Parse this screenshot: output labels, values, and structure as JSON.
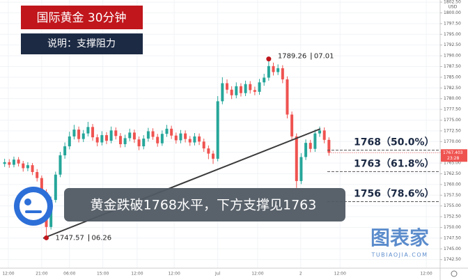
{
  "chart_data": {
    "type": "candlestick",
    "title": "国际黄金 30分钟",
    "subtitle": "说明：支撑阻力",
    "currency": "USD",
    "headline": "黄金跌破1768水平，下方支撑见1763",
    "watermark": {
      "name": "图表家",
      "site": "TUBIAOJIA.COM"
    },
    "colors": {
      "up": "#26a69a",
      "down": "#ef5350"
    },
    "x": [
      0,
      1,
      2,
      3,
      4,
      5,
      6,
      7,
      8,
      9,
      10,
      11,
      12,
      13,
      14,
      15,
      16,
      17,
      18,
      19,
      20,
      21,
      22,
      23,
      24,
      25,
      26,
      27,
      28,
      29,
      30,
      31,
      32,
      33,
      34,
      35,
      36,
      37,
      38,
      39,
      40,
      41,
      42,
      43,
      44,
      45,
      46,
      47,
      48,
      49,
      50,
      51,
      52,
      53,
      54,
      55,
      56,
      57,
      58,
      59,
      60,
      61,
      62,
      63,
      64,
      65,
      66,
      67,
      68,
      69,
      70
    ],
    "open": [
      1764.8,
      1765.2,
      1764.6,
      1765.8,
      1764.9,
      1763.8,
      1764.5,
      1762.9,
      1761.5,
      1758.2,
      1750.1,
      1756.4,
      1762.3,
      1766.8,
      1768.9,
      1771.2,
      1772.8,
      1770.6,
      1771.9,
      1773.4,
      1771.0,
      1769.8,
      1771.5,
      1770.2,
      1772.6,
      1771.3,
      1769.4,
      1770.8,
      1772.1,
      1770.5,
      1768.9,
      1770.7,
      1772.4,
      1771.1,
      1769.6,
      1771.8,
      1773.0,
      1771.4,
      1770.3,
      1771.9,
      1770.6,
      1769.8,
      1771.2,
      1770.0,
      1768.4,
      1767.2,
      1766.0,
      1779.4,
      1783.6,
      1782.1,
      1780.8,
      1782.9,
      1781.3,
      1783.4,
      1782.0,
      1781.6,
      1783.8,
      1784.9,
      1787.6,
      1786.2,
      1787.1,
      1784.5,
      1776.3,
      1771.2,
      1760.8,
      1766.4,
      1769.7,
      1768.3,
      1771.9,
      1772.6,
      1770.4
    ],
    "high": [
      1766.0,
      1765.9,
      1766.5,
      1766.4,
      1765.5,
      1765.2,
      1765.0,
      1763.6,
      1762.1,
      1758.9,
      1757.2,
      1763.0,
      1767.6,
      1769.8,
      1772.3,
      1773.9,
      1773.5,
      1772.7,
      1774.6,
      1774.1,
      1771.7,
      1772.4,
      1772.2,
      1773.5,
      1773.3,
      1772.0,
      1771.6,
      1773.0,
      1772.8,
      1771.2,
      1771.5,
      1773.2,
      1773.1,
      1771.8,
      1772.6,
      1773.9,
      1773.7,
      1772.1,
      1772.7,
      1772.6,
      1771.3,
      1772.0,
      1771.9,
      1770.7,
      1769.1,
      1767.9,
      1780.6,
      1785.0,
      1784.5,
      1782.9,
      1783.8,
      1783.6,
      1784.2,
      1784.1,
      1782.8,
      1784.6,
      1785.8,
      1789.26,
      1788.4,
      1788.0,
      1787.8,
      1785.2,
      1777.0,
      1771.9,
      1767.3,
      1770.5,
      1770.4,
      1772.8,
      1773.5,
      1773.3,
      1771.0
    ],
    "low": [
      1764.1,
      1763.9,
      1764.0,
      1764.2,
      1763.0,
      1763.1,
      1762.2,
      1760.7,
      1757.4,
      1747.57,
      1749.5,
      1755.8,
      1761.7,
      1766.0,
      1768.2,
      1770.5,
      1769.8,
      1769.9,
      1771.2,
      1770.2,
      1768.9,
      1769.1,
      1769.4,
      1769.6,
      1770.5,
      1768.6,
      1768.7,
      1770.1,
      1769.7,
      1768.0,
      1768.2,
      1770.0,
      1770.4,
      1768.8,
      1769.0,
      1771.1,
      1770.6,
      1769.5,
      1769.6,
      1769.8,
      1769.0,
      1769.1,
      1769.2,
      1767.6,
      1765.9,
      1764.8,
      1765.4,
      1778.7,
      1781.2,
      1779.9,
      1780.1,
      1780.5,
      1780.6,
      1781.2,
      1780.8,
      1780.9,
      1783.0,
      1784.2,
      1785.4,
      1785.5,
      1783.6,
      1775.4,
      1770.3,
      1759.2,
      1760.1,
      1765.7,
      1767.5,
      1767.6,
      1771.1,
      1769.6,
      1766.7
    ],
    "close": [
      1765.2,
      1764.6,
      1765.8,
      1764.9,
      1763.8,
      1764.5,
      1762.9,
      1761.5,
      1758.2,
      1750.1,
      1756.4,
      1762.3,
      1766.8,
      1768.9,
      1771.2,
      1772.8,
      1770.6,
      1771.9,
      1773.4,
      1771.0,
      1769.8,
      1771.5,
      1770.2,
      1772.6,
      1771.3,
      1769.4,
      1770.8,
      1772.1,
      1770.5,
      1768.9,
      1770.7,
      1772.4,
      1771.1,
      1769.6,
      1771.8,
      1773.0,
      1771.4,
      1770.3,
      1771.9,
      1770.6,
      1769.8,
      1771.2,
      1770.0,
      1768.4,
      1767.2,
      1766.0,
      1779.4,
      1783.6,
      1782.1,
      1780.8,
      1782.9,
      1781.3,
      1783.4,
      1782.0,
      1781.6,
      1783.8,
      1784.9,
      1787.6,
      1786.2,
      1787.1,
      1784.5,
      1776.3,
      1771.2,
      1760.8,
      1766.4,
      1769.7,
      1768.3,
      1771.9,
      1772.6,
      1770.4,
      1767.4
    ],
    "xlim": [
      -1,
      94
    ],
    "xticks": [
      {
        "value": 0.8,
        "label": "12:00"
      },
      {
        "value": 8.0,
        "label": "21:00"
      },
      {
        "value": 14.0,
        "label": "06:00"
      },
      {
        "value": 21.2,
        "label": "15:00"
      },
      {
        "value": 28.6,
        "label": "12:00"
      },
      {
        "value": 36.6,
        "label": "12:00"
      },
      {
        "value": 46.0,
        "label": "Jul"
      },
      {
        "value": 54.6,
        "label": "12:00"
      },
      {
        "value": 63.9,
        "label": "2"
      },
      {
        "value": 72.4,
        "label": "12:00"
      },
      {
        "value": 91.0,
        "label": "12:00"
      }
    ],
    "ylim": [
      1740.5,
      1803.0
    ],
    "yticks": [
      {
        "value": 1742.5,
        "label": "1742.50"
      },
      {
        "value": 1745,
        "label": "1745.00"
      },
      {
        "value": 1747.5,
        "label": "1747.50"
      },
      {
        "value": 1750,
        "label": "1750.00"
      },
      {
        "value": 1752.5,
        "label": "1752.50"
      },
      {
        "value": 1755,
        "label": "1755.00"
      },
      {
        "value": 1757.5,
        "label": "1757.50"
      },
      {
        "value": 1760,
        "label": "1760.00"
      },
      {
        "value": 1762.5,
        "label": "1762.50"
      },
      {
        "value": 1765,
        "label": "1765.00"
      },
      {
        "value": 1767.5,
        "label": "1767.50"
      },
      {
        "value": 1770,
        "label": "1770.00"
      },
      {
        "value": 1772.5,
        "label": "1772.50"
      },
      {
        "value": 1775,
        "label": "1775.00"
      },
      {
        "value": 1777.5,
        "label": "1777.50"
      },
      {
        "value": 1780,
        "label": "1780.00"
      },
      {
        "value": 1782.5,
        "label": "1782.50"
      },
      {
        "value": 1785,
        "label": "1785.00"
      },
      {
        "value": 1787.5,
        "label": "1787.50"
      },
      {
        "value": 1790,
        "label": "1790.00"
      },
      {
        "value": 1792.5,
        "label": "1792.50"
      },
      {
        "value": 1795,
        "label": "1795.00"
      },
      {
        "value": 1797.5,
        "label": "1797.50"
      },
      {
        "value": 1800,
        "label": "1800.00"
      },
      {
        "value": 1802.5,
        "label": "1802.50"
      }
    ],
    "grid": true,
    "annotations": [
      {
        "price": 1789.26,
        "date": "07.01"
      },
      {
        "price": 1747.57,
        "date": "06.26"
      }
    ],
    "levels": [
      {
        "value": 1768,
        "label": "1768（50.0%）"
      },
      {
        "value": 1763,
        "label": "1763（61.8%）"
      },
      {
        "value": 1756,
        "label": "1756（78.6%）"
      }
    ],
    "last_price": {
      "value": 1767.403,
      "label": "1767.403"
    },
    "countdown": "23:28"
  }
}
